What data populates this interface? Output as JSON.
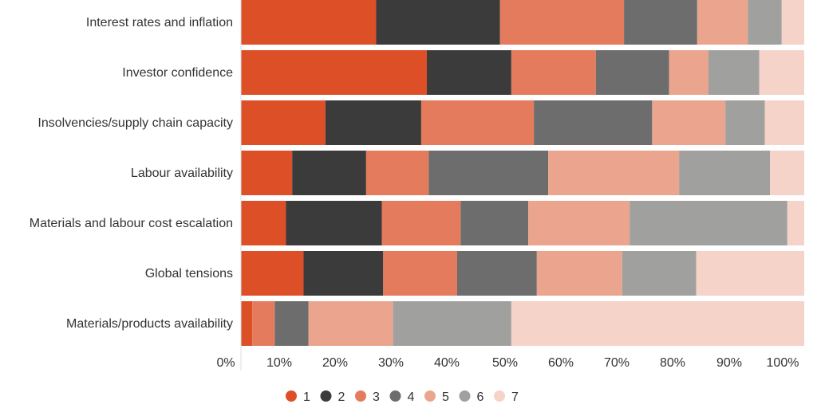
{
  "chart_data": {
    "type": "bar",
    "orientation": "horizontal",
    "stacked": true,
    "percent_stacked": true,
    "categories": [
      "Interest rates and inflation",
      "Investor confidence",
      "Insolvencies/supply chain capacity",
      "Labour availability",
      "Materials and labour cost escalation",
      "Global tensions",
      "Materials/products availability"
    ],
    "series": [
      {
        "name": "1",
        "color": "#dd4f27",
        "values": [
          24,
          33,
          15,
          9,
          8,
          11,
          2
        ]
      },
      {
        "name": "2",
        "color": "#3b3b3b",
        "values": [
          22,
          15,
          17,
          13,
          17,
          14,
          0
        ]
      },
      {
        "name": "3",
        "color": "#e47b5d",
        "values": [
          22,
          15,
          20,
          11,
          14,
          13,
          4
        ]
      },
      {
        "name": "4",
        "color": "#6d6d6d",
        "values": [
          13,
          13,
          21,
          21,
          12,
          14,
          6
        ]
      },
      {
        "name": "5",
        "color": "#eba58f",
        "values": [
          9,
          7,
          13,
          23,
          18,
          15,
          15
        ]
      },
      {
        "name": "6",
        "color": "#a0a09e",
        "values": [
          6,
          9,
          7,
          16,
          28,
          13,
          21
        ]
      },
      {
        "name": "7",
        "color": "#f5d3c9",
        "values": [
          4,
          8,
          7,
          6,
          3,
          19,
          52
        ]
      }
    ],
    "x_ticks": [
      "0%",
      "10%",
      "20%",
      "30%",
      "40%",
      "50%",
      "60%",
      "70%",
      "80%",
      "90%",
      "100%"
    ],
    "xlim": [
      0,
      100
    ],
    "grid": false,
    "legend_position": "bottom"
  }
}
